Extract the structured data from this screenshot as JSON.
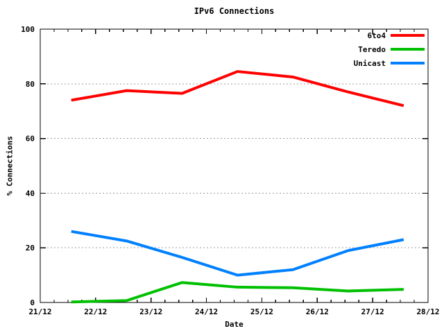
{
  "chart_data": {
    "type": "line",
    "title": "IPv6 Connections",
    "xlabel": "Date",
    "ylabel": "% Connections",
    "x_tick_labels": [
      "21/12",
      "22/12",
      "23/12",
      "24/12",
      "25/12",
      "26/12",
      "27/12",
      "28/12"
    ],
    "x_range_days": [
      0,
      7
    ],
    "x_minor_tick_interval_days": 0.25,
    "y_ticks": [
      0,
      20,
      40,
      60,
      80,
      100
    ],
    "ylim": [
      0,
      100
    ],
    "grid": "horizontal dashed gridlines at 20/40/60/80",
    "legend_position": "top-right inside plot, no box",
    "sample_dates": [
      "21/12",
      "22/12",
      "23/12",
      "24/12",
      "25/12",
      "26/12",
      "27/12"
    ],
    "sample_day_offsets": [
      0.56,
      1.56,
      2.56,
      3.56,
      4.56,
      5.56,
      6.56
    ],
    "series": [
      {
        "name": "6to4",
        "color": "#ff0000",
        "values": [
          74,
          77.5,
          76.5,
          84.5,
          82.5,
          77,
          72
        ]
      },
      {
        "name": "Teredo",
        "color": "#00c000",
        "values": [
          0.2,
          0.7,
          7.3,
          5.6,
          5.4,
          4.2,
          4.8
        ]
      },
      {
        "name": "Unicast",
        "color": "#0080ff",
        "values": [
          26,
          22.5,
          16.5,
          10,
          12,
          19,
          23
        ]
      }
    ],
    "colors": {
      "axis": "#000000",
      "grid": "#999999",
      "background": "#ffffff"
    }
  }
}
